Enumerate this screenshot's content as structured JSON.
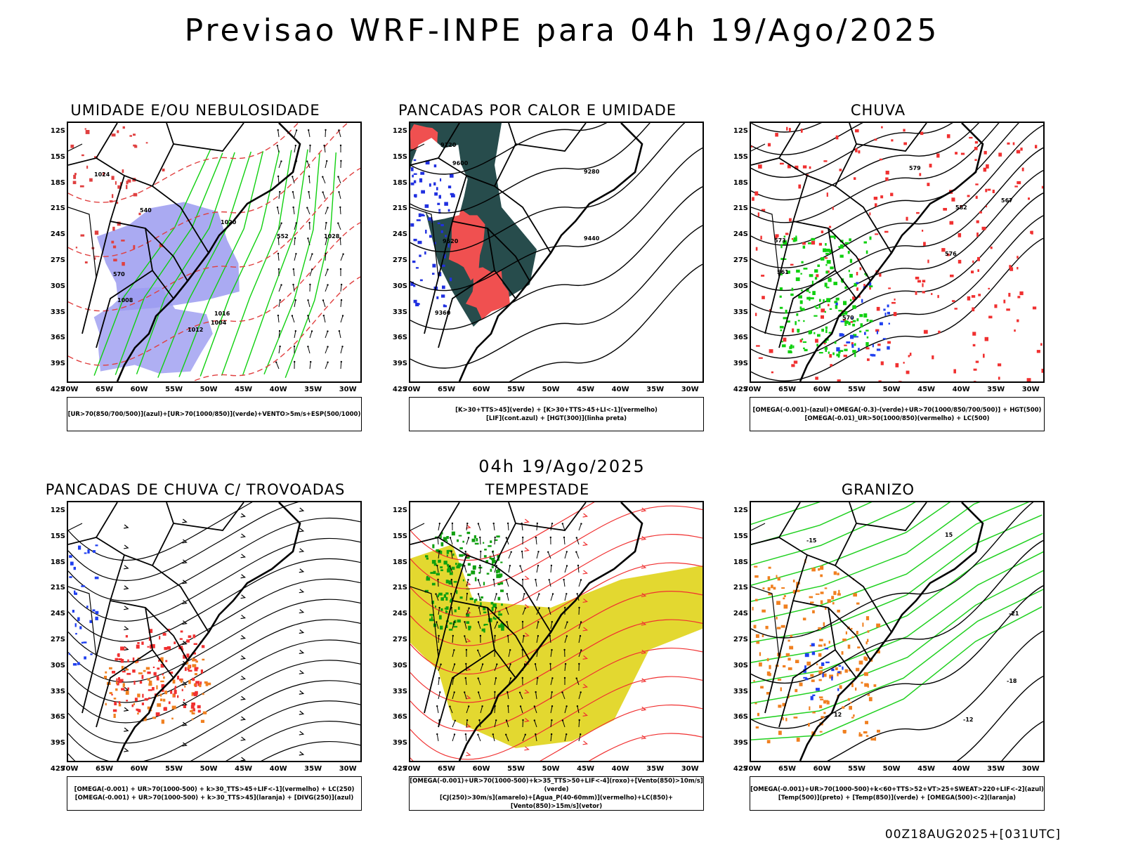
{
  "title": "Previsao WRF-INPE  para 04h 19/Ago/2025",
  "subtitle": "04h 19/Ago/2025",
  "footer": "00Z18AUG2025+[031UTC]",
  "axes": {
    "lat_labels": [
      "12S",
      "15S",
      "18S",
      "21S",
      "24S",
      "27S",
      "30S",
      "33S",
      "36S",
      "39S",
      "42S"
    ],
    "lon_labels": [
      "70W",
      "65W",
      "60W",
      "55W",
      "50W",
      "45W",
      "40W",
      "35W",
      "30W"
    ]
  },
  "panels": [
    {
      "title": "UMIDADE E/OU NEBULOSIDADE",
      "legend": [
        "[UR>70(850/700/500)](azul)+[UR>70(1000/850)](verde)+VENTO>5m/s+ESP(500/1000)"
      ],
      "overlay": "humidity",
      "contour_labels": [
        "1012",
        "1016",
        "1020",
        "1024",
        "1028",
        "1008",
        "1004",
        "570",
        "552",
        "540"
      ]
    },
    {
      "title": "PANCADAS POR CALOR E UMIDADE",
      "legend": [
        "[K>30+TTS>45](verde) + [K>30+TTS>45+LI<-1](vermelho)",
        "[LIF](cont.azul) + [HGT(300)](linha preta)"
      ],
      "overlay": "heat",
      "contour_labels": [
        "9600",
        "9520",
        "9440",
        "9360",
        "9280",
        "9120"
      ]
    },
    {
      "title": "CHUVA",
      "legend": [
        "[OMEGA(-0.001)-(azul)+OMEGA(-0.3)-(verde)+UR>70(1000/850/700/500)] + HGT(500)",
        "[OMEGA(-0.01)_UR>50(1000/850)(vermelho) + LC(500)"
      ],
      "overlay": "rain",
      "contour_labels": [
        "582",
        "579",
        "576",
        "573",
        "570",
        "567",
        "561"
      ]
    },
    {
      "title": "PANCADAS DE CHUVA C/ TROVOADAS",
      "legend": [
        "[OMEGA(-0.001) + UR>70(1000-500) + k>30_TTS>45+LIF<-1](vermelho) + LC(250)",
        "[OMEGA(-0.001) + UR>70(1000-500) + k>30_TTS>45](laranja) + [DIVG(250)](azul)"
      ],
      "overlay": "storms",
      "contour_labels": []
    },
    {
      "title": "TEMPESTADE",
      "legend": [
        "[OMEGA(-0.001)+UR>70(1000-500)+k>35_TTS>50+LIF<-4](roxo)+[Vento(850)>10m/s](verde)",
        "[CJ(250)>30m/s](amarelo)+[Agua_P(40-60mm)](vermelho)+LC(850)+[Vento(850)>15m/s](vetor)"
      ],
      "overlay": "tempest",
      "contour_labels": []
    },
    {
      "title": "GRANIZO",
      "legend": [
        "[OMEGA(-0.001)+UR>70(1000-500)+k<60+TTS>52+VT>25+SWEAT>220+LIF<-2](azul)",
        "[Temp(500)](preto) + [Temp(850)](verde) + [OMEGA(500)<-2](laranja)"
      ],
      "overlay": "hail",
      "contour_labels": [
        "-12",
        "-15",
        "-18",
        "-21",
        "12",
        "15"
      ]
    }
  ]
}
